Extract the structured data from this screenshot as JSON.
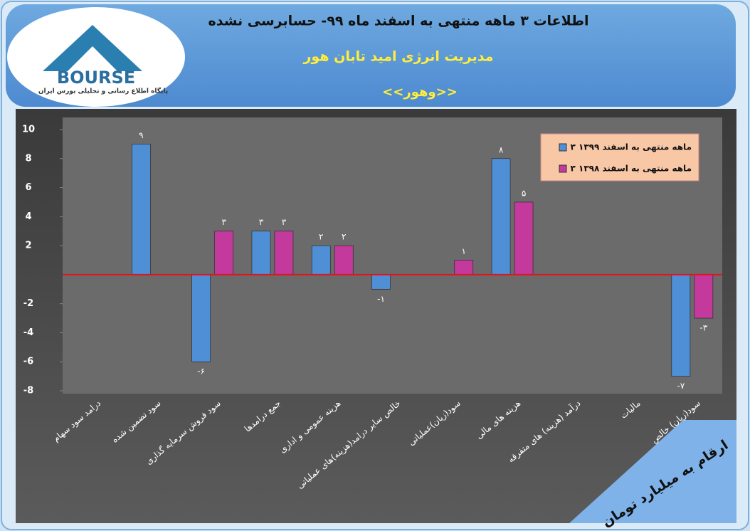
{
  "header": {
    "title": "اطلاعات ۳ ماهه منتهی به اسفند ماه ۹۹- حسابرسی نشده",
    "company": "مدیریت انرژی امید تابان هور",
    "symbol": "<<وهور>>",
    "logo_text": "BOURSE",
    "logo_subtitle": "پایگاه اطلاع رسانی و تحلیلی بورس ایران"
  },
  "chart_data": {
    "type": "bar",
    "note": "ارقام به میلیارد تومان",
    "categories": [
      "درامد سود سهام",
      "سود تضمین شده",
      "سود فروش سرمایه گذاری",
      "جمع درامدها",
      "هزینه عمومی و اداری",
      "خالص سایر درامد(هزینه)های عملیاتی",
      "سود(زیان)عملیاتی",
      "هزینه های مالی",
      "درآمد (هزینه) های متفرقه",
      "مالیات",
      "سود(زیان) خالص"
    ],
    "series": [
      {
        "name": "۳ ماهه منتهی به اسفند ۱۳۹۹",
        "color": "#4f8fd6",
        "values": [
          null,
          9,
          -6,
          3,
          2,
          -1,
          null,
          8,
          null,
          null,
          -7
        ],
        "value_labels": [
          null,
          "۹",
          "-۶",
          "۳",
          "۲",
          "-۱",
          null,
          "۸",
          null,
          null,
          "-۷"
        ]
      },
      {
        "name": "۳ ماهه منتهی به اسفند ۱۳۹۸",
        "color": "#c4399c",
        "values": [
          null,
          null,
          3,
          3,
          2,
          null,
          1,
          5,
          null,
          null,
          -3
        ],
        "value_labels": [
          null,
          null,
          "۳",
          "۳",
          "۲",
          null,
          "۱",
          "۵",
          null,
          null,
          "-۳"
        ]
      }
    ],
    "ylim": [
      -8,
      10
    ],
    "yticks": [
      -8,
      -6,
      -4,
      -2,
      2,
      4,
      6,
      8,
      10
    ],
    "zero_line_color": "#e0141e",
    "legend": "top-right"
  }
}
